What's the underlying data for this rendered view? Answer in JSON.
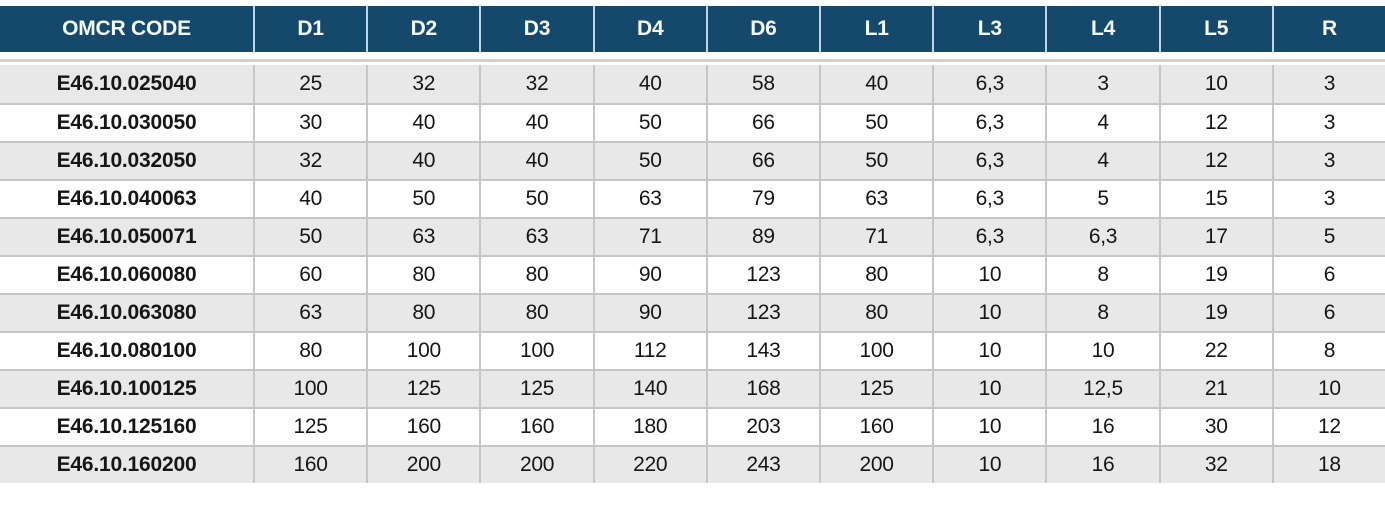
{
  "table": {
    "columns": [
      "OMCR CODE",
      "D1",
      "D2",
      "D3",
      "D4",
      "D6",
      "L1",
      "L3",
      "L4",
      "L5",
      "R"
    ],
    "rows": [
      {
        "code": "E46.10.025040",
        "values": [
          "25",
          "32",
          "32",
          "40",
          "58",
          "40",
          "6,3",
          "3",
          "10",
          "3"
        ]
      },
      {
        "code": "E46.10.030050",
        "values": [
          "30",
          "40",
          "40",
          "50",
          "66",
          "50",
          "6,3",
          "4",
          "12",
          "3"
        ]
      },
      {
        "code": "E46.10.032050",
        "values": [
          "32",
          "40",
          "40",
          "50",
          "66",
          "50",
          "6,3",
          "4",
          "12",
          "3"
        ]
      },
      {
        "code": "E46.10.040063",
        "values": [
          "40",
          "50",
          "50",
          "63",
          "79",
          "63",
          "6,3",
          "5",
          "15",
          "3"
        ]
      },
      {
        "code": "E46.10.050071",
        "values": [
          "50",
          "63",
          "63",
          "71",
          "89",
          "71",
          "6,3",
          "6,3",
          "17",
          "5"
        ]
      },
      {
        "code": "E46.10.060080",
        "values": [
          "60",
          "80",
          "80",
          "90",
          "123",
          "80",
          "10",
          "8",
          "19",
          "6"
        ]
      },
      {
        "code": "E46.10.063080",
        "values": [
          "63",
          "80",
          "80",
          "90",
          "123",
          "80",
          "10",
          "8",
          "19",
          "6"
        ]
      },
      {
        "code": "E46.10.080100",
        "values": [
          "80",
          "100",
          "100",
          "112",
          "143",
          "100",
          "10",
          "10",
          "22",
          "8"
        ]
      },
      {
        "code": "E46.10.100125",
        "values": [
          "100",
          "125",
          "125",
          "140",
          "168",
          "125",
          "10",
          "12,5",
          "21",
          "10"
        ]
      },
      {
        "code": "E46.10.125160",
        "values": [
          "125",
          "160",
          "160",
          "180",
          "203",
          "160",
          "10",
          "16",
          "30",
          "12"
        ]
      },
      {
        "code": "E46.10.160200",
        "values": [
          "160",
          "200",
          "200",
          "220",
          "243",
          "200",
          "10",
          "16",
          "32",
          "18"
        ]
      }
    ]
  },
  "colors": {
    "header_bg": "#14496b",
    "header_text": "#f5f9fc",
    "header_separator": "#bed5e3",
    "row_alt_bg": "#e8e8e8",
    "row_bg": "#ffffff",
    "grid_line": "#c6c6c6",
    "strip": "#d2d2d2",
    "text": "#161616"
  }
}
